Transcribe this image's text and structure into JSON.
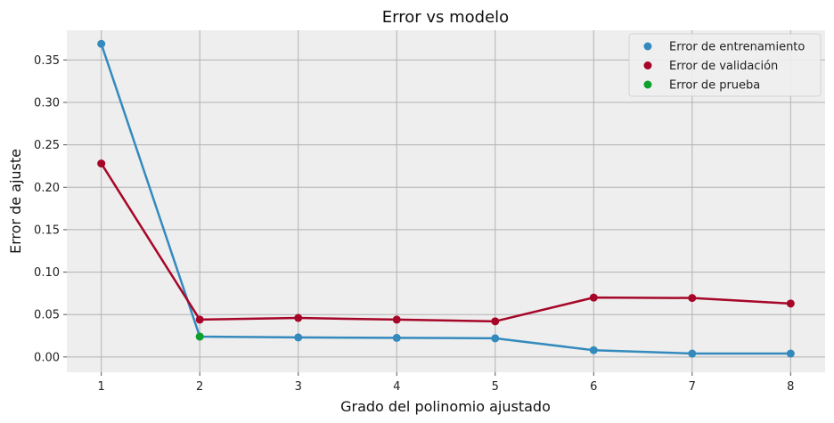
{
  "chart_data": {
    "type": "line",
    "title": "Error vs modelo",
    "xlabel": "Grado del polinomio ajustado",
    "ylabel": "Error de ajuste",
    "x": [
      1,
      2,
      3,
      4,
      5,
      6,
      7,
      8
    ],
    "xlim": [
      0.65,
      8.35
    ],
    "ylim": [
      -0.018,
      0.385
    ],
    "xticks": [
      1,
      2,
      3,
      4,
      5,
      6,
      7,
      8
    ],
    "yticks": [
      0.0,
      0.05,
      0.1,
      0.15,
      0.2,
      0.25,
      0.3,
      0.35
    ],
    "ytick_labels": [
      "0.00",
      "0.05",
      "0.10",
      "0.15",
      "0.20",
      "0.25",
      "0.30",
      "0.35"
    ],
    "grid": true,
    "legend_position": "top-right",
    "series": [
      {
        "name": "Error de entrenamiento",
        "color": "#348ABD",
        "x": [
          1,
          2,
          3,
          4,
          5,
          6,
          7,
          8
        ],
        "values": [
          0.369,
          0.024,
          0.023,
          0.0225,
          0.022,
          0.008,
          0.004,
          0.004
        ],
        "line": true
      },
      {
        "name": "Error de validación",
        "color": "#A60628",
        "x": [
          1,
          2,
          3,
          4,
          5,
          6,
          7,
          8
        ],
        "values": [
          0.228,
          0.044,
          0.046,
          0.044,
          0.042,
          0.07,
          0.0695,
          0.063
        ],
        "line": true
      },
      {
        "name": "Error de prueba",
        "color": "#0FA02D",
        "x": [
          2
        ],
        "values": [
          0.024
        ],
        "line": false
      }
    ]
  }
}
